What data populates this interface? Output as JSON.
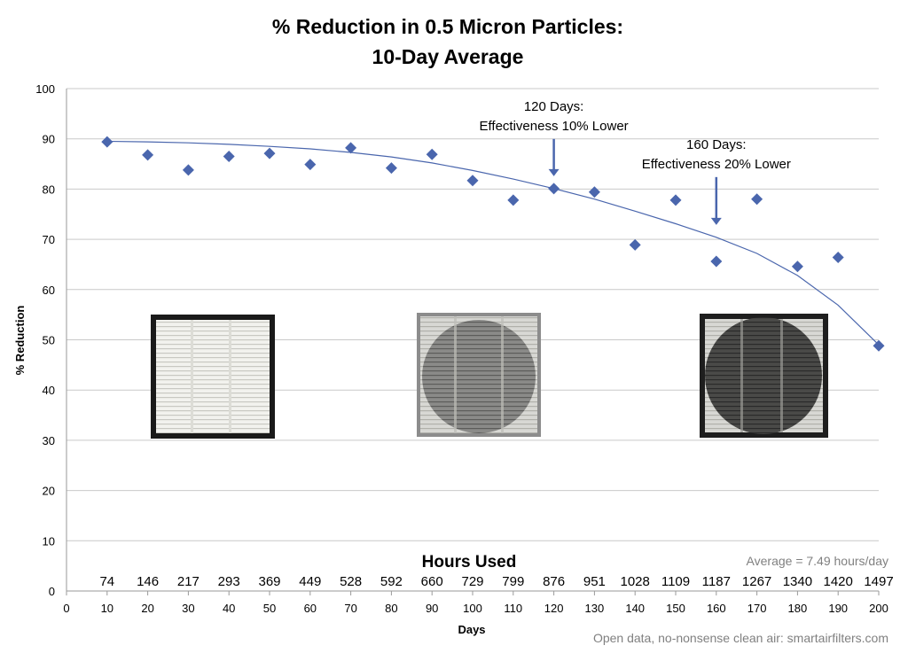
{
  "chart_data": {
    "type": "scatter",
    "title_line1": "% Reduction in 0.5 Micron Particles:",
    "title_line2": "10-Day Average",
    "xlabel": "Days",
    "ylabel": "% Reduction",
    "xlim": [
      0,
      200
    ],
    "ylim": [
      0,
      100
    ],
    "x_ticks": [
      0,
      10,
      20,
      30,
      40,
      50,
      60,
      70,
      80,
      90,
      100,
      110,
      120,
      130,
      140,
      150,
      160,
      170,
      180,
      190,
      200
    ],
    "y_ticks": [
      0,
      10,
      20,
      30,
      40,
      50,
      60,
      70,
      80,
      90,
      100
    ],
    "grid": "horizontal",
    "series": [
      {
        "color": "#4a66ad",
        "marker": "diamond",
        "x": [
          10,
          20,
          30,
          40,
          50,
          60,
          70,
          80,
          90,
          100,
          110,
          120,
          130,
          140,
          150,
          160,
          170,
          180,
          190,
          200
        ],
        "y": [
          89.4,
          86.8,
          83.8,
          86.5,
          87.1,
          84.9,
          88.2,
          84.2,
          86.9,
          81.7,
          77.8,
          80.1,
          79.4,
          68.9,
          77.8,
          65.6,
          78.0,
          64.6,
          66.4,
          48.8
        ]
      }
    ],
    "trendline": {
      "color": "#4a66ad",
      "x": [
        10,
        20,
        30,
        40,
        50,
        60,
        70,
        80,
        90,
        100,
        110,
        120,
        130,
        140,
        150,
        160,
        170,
        180,
        190,
        200
      ],
      "y": [
        89.5,
        89.4,
        89.2,
        88.9,
        88.5,
        88.0,
        87.3,
        86.4,
        85.2,
        83.7,
        82.0,
        80.1,
        78.0,
        75.6,
        73.1,
        70.4,
        67.2,
        62.8,
        56.9,
        49.0
      ]
    },
    "hours_label": "Hours Used",
    "hours_used": [
      74,
      146,
      217,
      293,
      369,
      449,
      528,
      592,
      660,
      729,
      799,
      876,
      951,
      1028,
      1109,
      1187,
      1267,
      1340,
      1420,
      1497
    ],
    "average_note": "Average = 7.49 hours/day",
    "annotations": [
      {
        "x": 120,
        "y": 80.1,
        "line1": "120 Days:",
        "line2": "Effectiveness 10% Lower"
      },
      {
        "x": 160,
        "y": 70.4,
        "line1": "160 Days:",
        "line2": "Effectiveness 20% Lower"
      }
    ],
    "filter_images": [
      {
        "name": "new-filter-photo",
        "state": "clean"
      },
      {
        "name": "filter-photo-120-days",
        "state": "dirty"
      },
      {
        "name": "filter-photo-160-days",
        "state": "very-dirty"
      }
    ]
  },
  "footer": "Open data, no-nonsense clean air: smartairfilters.com"
}
